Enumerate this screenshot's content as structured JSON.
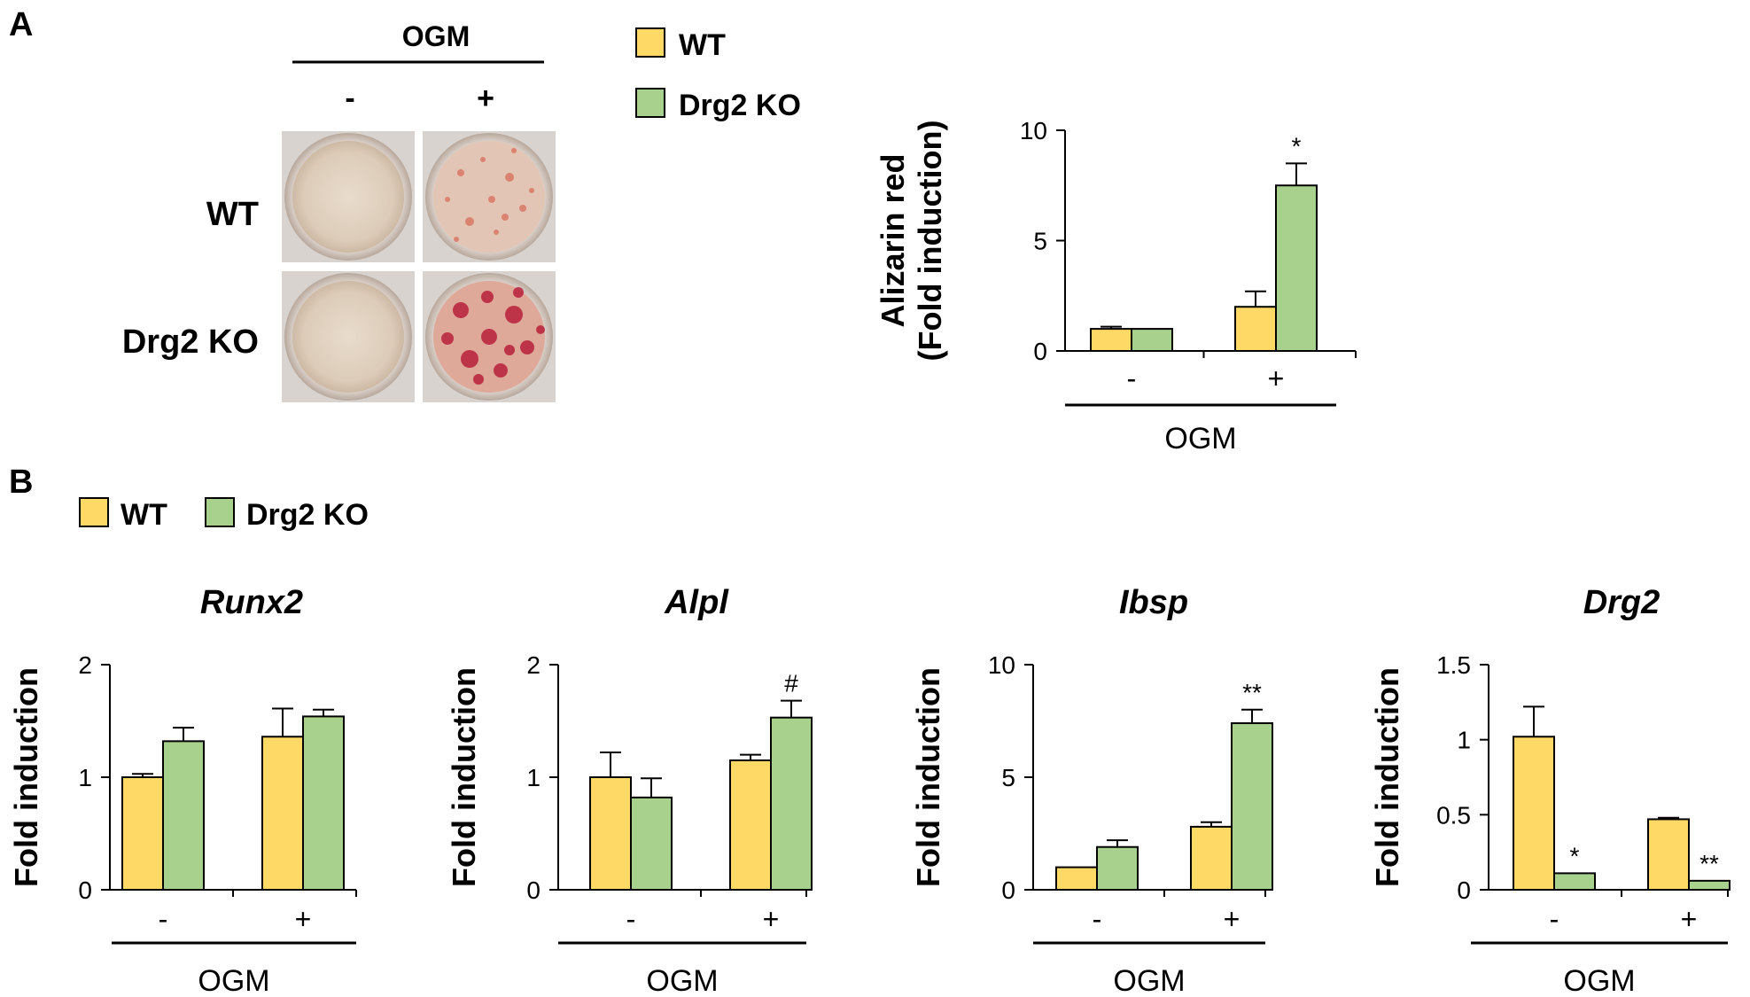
{
  "panel_a": {
    "label": "A",
    "photo": {
      "header": "OGM",
      "columns": [
        "-",
        "+"
      ],
      "rows": [
        "WT",
        "Drg2 KO"
      ]
    },
    "legend": [
      "WT",
      "Drg2 KO"
    ]
  },
  "panel_b": {
    "label": "B",
    "legend": [
      "WT",
      "Drg2 KO"
    ]
  },
  "colors": {
    "wt": "#FFD966",
    "ko": "#A9D18E",
    "line": "#000000"
  },
  "chart_data": [
    {
      "id": "alizarin",
      "type": "bar",
      "title": "",
      "ylabel": "Alizarin red",
      "ylabel2": "(Fold induction)",
      "xlabel": "OGM",
      "categories": [
        "-",
        "+"
      ],
      "ylim": [
        0,
        10
      ],
      "yticks": [
        0,
        5,
        10
      ],
      "ytick_labels": [
        "0",
        "5",
        "10"
      ],
      "series": [
        {
          "name": "WT",
          "values": [
            1.0,
            2.0
          ],
          "errors": [
            0.1,
            0.7
          ]
        },
        {
          "name": "Drg2 KO",
          "values": [
            1.0,
            7.5
          ],
          "errors": [
            0.0,
            1.0
          ]
        }
      ],
      "annotations": [
        {
          "series": 1,
          "category": 1,
          "text": "*"
        }
      ]
    },
    {
      "id": "runx2",
      "type": "bar",
      "title": "Runx2",
      "ylabel": "Fold induction",
      "xlabel": "OGM",
      "categories": [
        "-",
        "+"
      ],
      "ylim": [
        0,
        2
      ],
      "yticks": [
        0,
        1,
        2
      ],
      "ytick_labels": [
        "0",
        "1",
        "2"
      ],
      "series": [
        {
          "name": "WT",
          "values": [
            1.0,
            1.36
          ],
          "errors": [
            0.03,
            0.25
          ]
        },
        {
          "name": "Drg2 KO",
          "values": [
            1.32,
            1.54
          ],
          "errors": [
            0.12,
            0.06
          ]
        }
      ],
      "annotations": []
    },
    {
      "id": "alpl",
      "type": "bar",
      "title": "Alpl",
      "ylabel": "Fold induction",
      "xlabel": "OGM",
      "categories": [
        "-",
        "+"
      ],
      "ylim": [
        0,
        2
      ],
      "yticks": [
        0,
        1,
        2
      ],
      "ytick_labels": [
        "0",
        "1",
        "2"
      ],
      "series": [
        {
          "name": "WT",
          "values": [
            1.0,
            1.15
          ],
          "errors": [
            0.22,
            0.05
          ]
        },
        {
          "name": "Drg2 KO",
          "values": [
            0.82,
            1.53
          ],
          "errors": [
            0.17,
            0.15
          ]
        }
      ],
      "annotations": [
        {
          "series": 1,
          "category": 1,
          "text": "#"
        }
      ]
    },
    {
      "id": "ibsp",
      "type": "bar",
      "title": "Ibsp",
      "ylabel": "Fold induction",
      "xlabel": "OGM",
      "categories": [
        "-",
        "+"
      ],
      "ylim": [
        0,
        10
      ],
      "yticks": [
        0,
        5,
        10
      ],
      "ytick_labels": [
        "0",
        "5",
        "10"
      ],
      "series": [
        {
          "name": "WT",
          "values": [
            1.0,
            2.8
          ],
          "errors": [
            0.0,
            0.2
          ]
        },
        {
          "name": "Drg2 KO",
          "values": [
            1.9,
            7.4
          ],
          "errors": [
            0.3,
            0.6
          ]
        }
      ],
      "annotations": [
        {
          "series": 1,
          "category": 1,
          "text": "**"
        }
      ]
    },
    {
      "id": "drg2",
      "type": "bar",
      "title": "Drg2",
      "ylabel": "Fold induction",
      "xlabel": "OGM",
      "categories": [
        "-",
        "+"
      ],
      "ylim": [
        0,
        1.5
      ],
      "yticks": [
        0,
        0.5,
        1,
        1.5
      ],
      "ytick_labels": [
        "0",
        "0.5",
        "1",
        "1.5"
      ],
      "series": [
        {
          "name": "WT",
          "values": [
            1.02,
            0.47
          ],
          "errors": [
            0.2,
            0.01
          ]
        },
        {
          "name": "Drg2 KO",
          "values": [
            0.11,
            0.06
          ],
          "errors": [
            0.0,
            0.0
          ]
        }
      ],
      "annotations": [
        {
          "series": 1,
          "category": 0,
          "text": "*"
        },
        {
          "series": 1,
          "category": 1,
          "text": "**"
        }
      ]
    }
  ]
}
